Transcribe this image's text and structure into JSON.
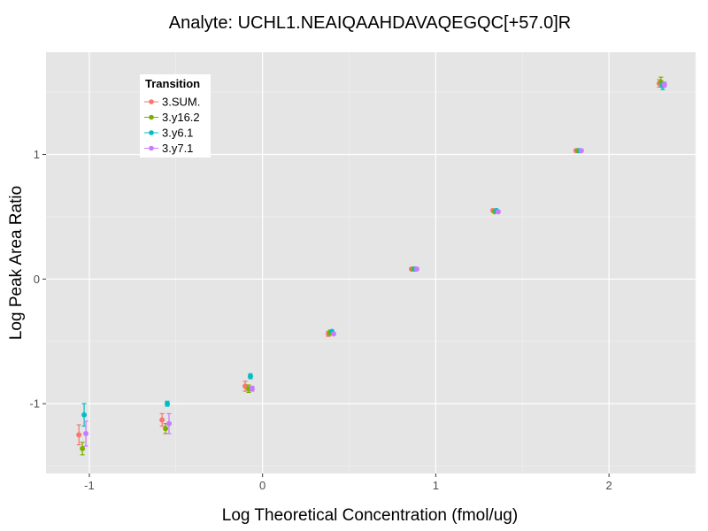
{
  "chart_data": {
    "type": "scatter",
    "title": "Analyte: UCHL1.NEAIQAAHDAVAQEGQC[+57.0]R",
    "xlabel": "Log Theoretical Concentration (fmol/ug)",
    "ylabel": "Log Peak Area Ratio",
    "xlim": [
      -1.25,
      2.5
    ],
    "ylim": [
      -1.56,
      1.82
    ],
    "xticks": [
      -1,
      0,
      1,
      2
    ],
    "xtick_labels": [
      "-1",
      "0",
      "1",
      "2"
    ],
    "yticks": [
      -1,
      0,
      1
    ],
    "ytick_labels": [
      "-1",
      "0",
      "1"
    ],
    "grid": true,
    "error_bars": true,
    "legend": {
      "title": "Transition",
      "position": "top-left"
    },
    "series": [
      {
        "name": "3.SUM.",
        "color": "#F8766D",
        "x": [
          -1.06,
          -0.58,
          -0.1,
          0.38,
          0.86,
          1.33,
          1.81,
          2.29
        ],
        "y": [
          -1.25,
          -1.13,
          -0.86,
          -0.44,
          0.08,
          0.55,
          1.03,
          1.57
        ],
        "err": [
          0.08,
          0.05,
          0.04,
          0.02,
          0.01,
          0.01,
          0.01,
          0.03
        ]
      },
      {
        "name": "3.y16.2",
        "color": "#7CAE00",
        "x": [
          -1.04,
          -0.56,
          -0.08,
          0.39,
          0.87,
          1.34,
          1.82,
          2.3
        ],
        "y": [
          -1.36,
          -1.2,
          -0.88,
          -0.43,
          0.08,
          0.54,
          1.03,
          1.58
        ],
        "err": [
          0.05,
          0.04,
          0.03,
          0.02,
          0.01,
          0.01,
          0.01,
          0.04
        ]
      },
      {
        "name": "3.y6.1",
        "color": "#00BFC4",
        "x": [
          -1.03,
          -0.55,
          -0.07,
          0.4,
          0.88,
          1.35,
          1.83,
          2.31
        ],
        "y": [
          -1.09,
          -1.0,
          -0.78,
          -0.42,
          0.08,
          0.55,
          1.03,
          1.55
        ],
        "err": [
          0.09,
          0.02,
          0.02,
          0.01,
          0.01,
          0.01,
          0.01,
          0.03
        ]
      },
      {
        "name": "3.y7.1",
        "color": "#C77CFF",
        "x": [
          -1.02,
          -0.54,
          -0.06,
          0.41,
          0.89,
          1.36,
          1.84,
          2.32
        ],
        "y": [
          -1.24,
          -1.16,
          -0.88,
          -0.44,
          0.08,
          0.54,
          1.03,
          1.56
        ],
        "err": [
          0.1,
          0.08,
          0.02,
          0.01,
          0.01,
          0.01,
          0.01,
          0.02
        ]
      }
    ]
  }
}
